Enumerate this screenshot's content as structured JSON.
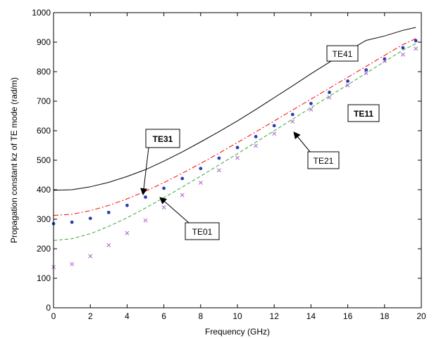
{
  "chart_data": {
    "type": "line",
    "title": "",
    "xlabel": "Frequency (GHz)",
    "ylabel": "Propagation constant kz of TE mode (rad/m)",
    "xlim": [
      0,
      20
    ],
    "ylim": [
      0,
      1000
    ],
    "xticks": [
      "0",
      "2",
      "4",
      "6",
      "8",
      "10",
      "12",
      "14",
      "16",
      "18",
      "20"
    ],
    "yticks": [
      "0",
      "100",
      "200",
      "300",
      "400",
      "500",
      "600",
      "700",
      "800",
      "900",
      "1000"
    ],
    "grid": false,
    "series": [
      {
        "name": "TE41",
        "color": "#000000",
        "style": "solid",
        "x": [
          0,
          1,
          2,
          3,
          4,
          5,
          6,
          7,
          8,
          9,
          10,
          11,
          12,
          13,
          14,
          15,
          16,
          17,
          18,
          19,
          19.7
        ],
        "y": [
          398,
          400,
          410,
          425,
          445,
          468,
          497,
          528,
          562,
          597,
          633,
          672,
          712,
          752,
          793,
          832,
          870,
          906,
          921,
          940,
          950
        ]
      },
      {
        "name": "TE31",
        "color": "#ff0000",
        "style": "dashdot",
        "x": [
          0,
          1,
          2,
          3,
          4,
          5,
          6,
          7,
          8,
          9,
          10,
          11,
          12,
          13,
          14,
          15,
          16,
          17,
          18,
          19,
          19.7
        ],
        "y": [
          313,
          317,
          329,
          347,
          369,
          395,
          424,
          456,
          489,
          524,
          560,
          596,
          633,
          670,
          707,
          744,
          781,
          818,
          855,
          892,
          912
        ]
      },
      {
        "name": "TE01",
        "color": "#2a3fb0",
        "style": "dots",
        "x": [
          0,
          1,
          2,
          3,
          4,
          5,
          6,
          7,
          8,
          9,
          10,
          11,
          12,
          13,
          14,
          15,
          16,
          17,
          18,
          19,
          19.7
        ],
        "y": [
          285,
          290,
          303,
          323,
          347,
          375,
          405,
          438,
          472,
          507,
          543,
          580,
          617,
          655,
          692,
          730,
          768,
          806,
          843,
          881,
          905
        ]
      },
      {
        "name": "TE11",
        "color": "#33aa33",
        "style": "dashed",
        "x": [
          0,
          1,
          2,
          3,
          4,
          5,
          6,
          7,
          8,
          9,
          10,
          11,
          12,
          13,
          14,
          15,
          16,
          17,
          18,
          19,
          19.7
        ],
        "y": [
          228,
          234,
          251,
          276,
          305,
          338,
          373,
          409,
          446,
          484,
          522,
          561,
          600,
          639,
          678,
          717,
          756,
          795,
          834,
          873,
          895
        ]
      },
      {
        "name": "TE21",
        "color": "#b05fcc",
        "style": "cross",
        "x": [
          0,
          1,
          2,
          3,
          4,
          5,
          6,
          7,
          8,
          9,
          10,
          11,
          12,
          13,
          14,
          15,
          16,
          17,
          18,
          19,
          19.7
        ],
        "y": [
          138,
          148,
          175,
          212,
          253,
          296,
          340,
          382,
          424,
          466,
          508,
          549,
          590,
          631,
          672,
          713,
          754,
          795,
          836,
          858,
          878
        ]
      }
    ],
    "annotations": [
      {
        "text": "TE41",
        "bold": false,
        "target_x": null,
        "target_y": null
      },
      {
        "text": "TE11",
        "bold": true,
        "target_x": null,
        "target_y": null
      },
      {
        "text": "TE31",
        "bold": true,
        "target_x": 4.7,
        "target_y": 372
      },
      {
        "text": "TE21",
        "bold": false,
        "target_x": 12.8,
        "target_y": 620
      },
      {
        "text": "TE01",
        "bold": false,
        "target_x": 5.5,
        "target_y": 388
      }
    ]
  }
}
